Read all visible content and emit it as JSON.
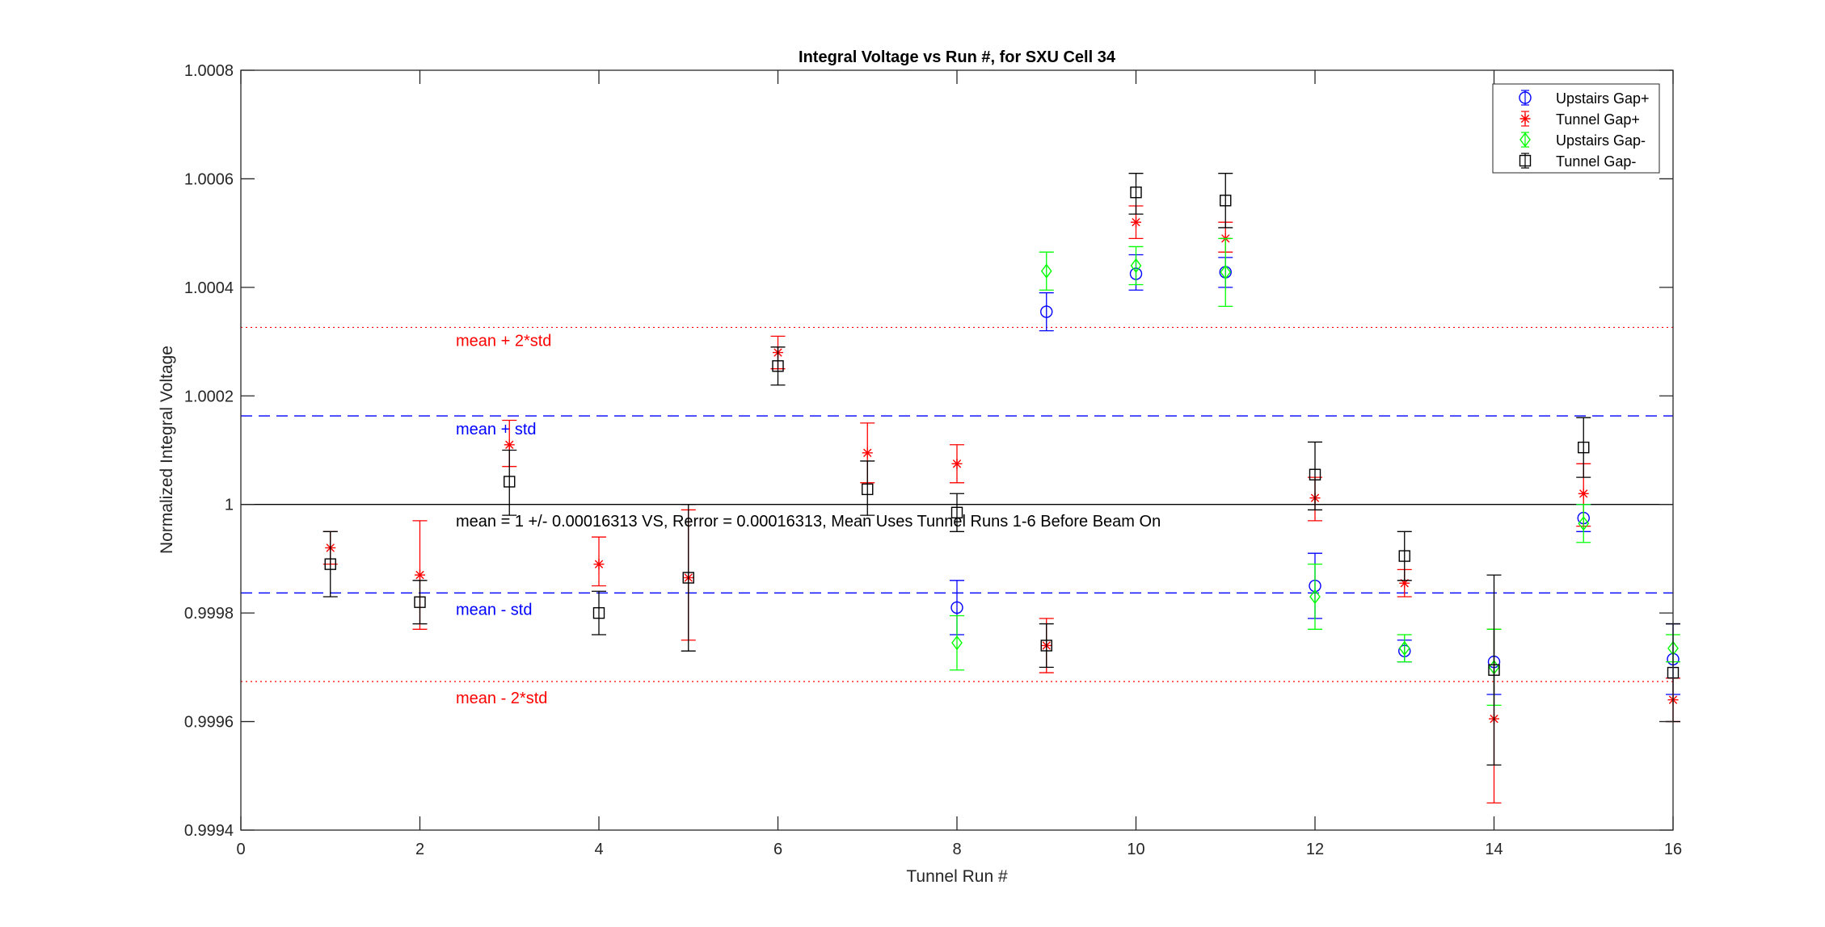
{
  "chart_data": {
    "type": "scatter",
    "title": "Integral Voltage vs Run #, for SXU Cell 34",
    "xlabel": "Tunnel Run #",
    "ylabel": "Normalized Integral Voltage",
    "xlim": [
      0,
      16
    ],
    "ylim": [
      0.9994,
      1.0008
    ],
    "xticks": [
      0,
      2,
      4,
      6,
      8,
      10,
      12,
      14,
      16
    ],
    "yticks": [
      0.9994,
      0.9996,
      0.9998,
      1,
      1.0002,
      1.0004,
      1.0006,
      1.0008
    ],
    "xtick_labels": [
      "0",
      "2",
      "4",
      "6",
      "8",
      "10",
      "12",
      "14",
      "16"
    ],
    "ytick_labels": [
      "0.9994",
      "0.9996",
      "0.9998",
      "1",
      "1.0002",
      "1.0004",
      "1.0006",
      "1.0008"
    ],
    "grid": false,
    "legend_position": "top-right",
    "series": [
      {
        "name": "Upstairs Gap+",
        "color": "#0000ff",
        "marker": "circle",
        "points": [
          {
            "x": 8,
            "y": 0.99981,
            "lo": 0.99976,
            "hi": 0.99986
          },
          {
            "x": 9,
            "y": 1.000355,
            "lo": 1.00032,
            "hi": 1.00039
          },
          {
            "x": 10,
            "y": 1.000425,
            "lo": 1.000395,
            "hi": 1.00046
          },
          {
            "x": 11,
            "y": 1.000428,
            "lo": 1.0004,
            "hi": 1.000455
          },
          {
            "x": 12,
            "y": 0.99985,
            "lo": 0.99979,
            "hi": 0.99991
          },
          {
            "x": 13,
            "y": 0.99973,
            "lo": 0.99971,
            "hi": 0.99975
          },
          {
            "x": 14,
            "y": 0.99971,
            "lo": 0.99965,
            "hi": 0.99977
          },
          {
            "x": 15,
            "y": 0.999975,
            "lo": 0.99995,
            "hi": 1.0
          },
          {
            "x": 16,
            "y": 0.999715,
            "lo": 0.99965,
            "hi": 0.99978
          }
        ]
      },
      {
        "name": "Tunnel Gap+",
        "color": "#ff0000",
        "marker": "asterisk",
        "points": [
          {
            "x": 1,
            "y": 0.99992,
            "lo": 0.99989,
            "hi": 0.99995
          },
          {
            "x": 2,
            "y": 0.99987,
            "lo": 0.99977,
            "hi": 0.99997
          },
          {
            "x": 3,
            "y": 1.00011,
            "lo": 1.00007,
            "hi": 1.000155
          },
          {
            "x": 4,
            "y": 0.99989,
            "lo": 0.99985,
            "hi": 0.99994
          },
          {
            "x": 5,
            "y": 0.999865,
            "lo": 0.99975,
            "hi": 0.99999
          },
          {
            "x": 6,
            "y": 1.00028,
            "lo": 1.00025,
            "hi": 1.00031
          },
          {
            "x": 7,
            "y": 1.000095,
            "lo": 1.00004,
            "hi": 1.00015
          },
          {
            "x": 8,
            "y": 1.000075,
            "lo": 1.00004,
            "hi": 1.00011
          },
          {
            "x": 9,
            "y": 0.99974,
            "lo": 0.99969,
            "hi": 0.99979
          },
          {
            "x": 10,
            "y": 1.00052,
            "lo": 1.00049,
            "hi": 1.00055
          },
          {
            "x": 11,
            "y": 1.00049,
            "lo": 1.000465,
            "hi": 1.00052
          },
          {
            "x": 12,
            "y": 1.000012,
            "lo": 0.99997,
            "hi": 1.00005
          },
          {
            "x": 13,
            "y": 0.999855,
            "lo": 0.99983,
            "hi": 0.99988
          },
          {
            "x": 14,
            "y": 0.999605,
            "lo": 0.99945,
            "hi": 0.99977
          },
          {
            "x": 15,
            "y": 1.00002,
            "lo": 0.99996,
            "hi": 1.000075
          },
          {
            "x": 16,
            "y": 0.99964,
            "lo": 0.9996,
            "hi": 0.99968
          }
        ]
      },
      {
        "name": "Upstairs Gap-",
        "color": "#00ff00",
        "marker": "diamond",
        "points": [
          {
            "x": 8,
            "y": 0.999745,
            "lo": 0.999695,
            "hi": 0.999795
          },
          {
            "x": 9,
            "y": 1.00043,
            "lo": 1.000395,
            "hi": 1.000465
          },
          {
            "x": 10,
            "y": 1.00044,
            "lo": 1.000405,
            "hi": 1.000475
          },
          {
            "x": 11,
            "y": 1.000428,
            "lo": 1.000365,
            "hi": 1.00049
          },
          {
            "x": 12,
            "y": 0.99983,
            "lo": 0.99977,
            "hi": 0.99989
          },
          {
            "x": 13,
            "y": 0.999735,
            "lo": 0.99971,
            "hi": 0.99976
          },
          {
            "x": 14,
            "y": 0.9997,
            "lo": 0.99963,
            "hi": 0.99977
          },
          {
            "x": 15,
            "y": 0.999965,
            "lo": 0.99993,
            "hi": 1.0
          },
          {
            "x": 16,
            "y": 0.999735,
            "lo": 0.99971,
            "hi": 0.99976
          }
        ]
      },
      {
        "name": "Tunnel Gap-",
        "color": "#000000",
        "marker": "square",
        "points": [
          {
            "x": 1,
            "y": 0.99989,
            "lo": 0.99983,
            "hi": 0.99995
          },
          {
            "x": 2,
            "y": 0.99982,
            "lo": 0.99978,
            "hi": 0.99986
          },
          {
            "x": 3,
            "y": 1.000042,
            "lo": 0.99998,
            "hi": 1.0001
          },
          {
            "x": 4,
            "y": 0.9998,
            "lo": 0.99976,
            "hi": 0.99984
          },
          {
            "x": 5,
            "y": 0.999865,
            "lo": 0.99973,
            "hi": 1.0
          },
          {
            "x": 6,
            "y": 1.000255,
            "lo": 1.00022,
            "hi": 1.00029
          },
          {
            "x": 7,
            "y": 1.000028,
            "lo": 0.99998,
            "hi": 1.00008
          },
          {
            "x": 8,
            "y": 0.999985,
            "lo": 0.99995,
            "hi": 1.00002
          },
          {
            "x": 9,
            "y": 0.99974,
            "lo": 0.9997,
            "hi": 0.99978
          },
          {
            "x": 10,
            "y": 1.000575,
            "lo": 1.000535,
            "hi": 1.00061
          },
          {
            "x": 11,
            "y": 1.00056,
            "lo": 1.00051,
            "hi": 1.00061
          },
          {
            "x": 12,
            "y": 1.000055,
            "lo": 0.99999,
            "hi": 1.000115
          },
          {
            "x": 13,
            "y": 0.999905,
            "lo": 0.99986,
            "hi": 0.99995
          },
          {
            "x": 14,
            "y": 0.999695,
            "lo": 0.99952,
            "hi": 0.99987
          },
          {
            "x": 15,
            "y": 1.000105,
            "lo": 1.00005,
            "hi": 1.00016
          },
          {
            "x": 16,
            "y": 0.99969,
            "lo": 0.9996,
            "hi": 0.99978
          }
        ]
      }
    ],
    "reference_lines": [
      {
        "label": "",
        "y": 1.0,
        "color": "#000000",
        "style": "solid"
      },
      {
        "label": "mean + std",
        "y": 1.00016313,
        "color": "#0000ff",
        "style": "dashed"
      },
      {
        "label": "mean - std",
        "y": 0.99983687,
        "color": "#0000ff",
        "style": "dashed"
      },
      {
        "label": "mean + 2*std",
        "y": 1.00032626,
        "color": "#ff0000",
        "style": "dotted"
      },
      {
        "label": "mean - 2*std",
        "y": 0.99967374,
        "color": "#ff0000",
        "style": "dotted"
      }
    ],
    "annotation": "mean = 1 +/- 0.00016313 VS, Rerror = 0.00016313, Mean Uses Tunnel Runs 1-6 Before Beam On"
  }
}
